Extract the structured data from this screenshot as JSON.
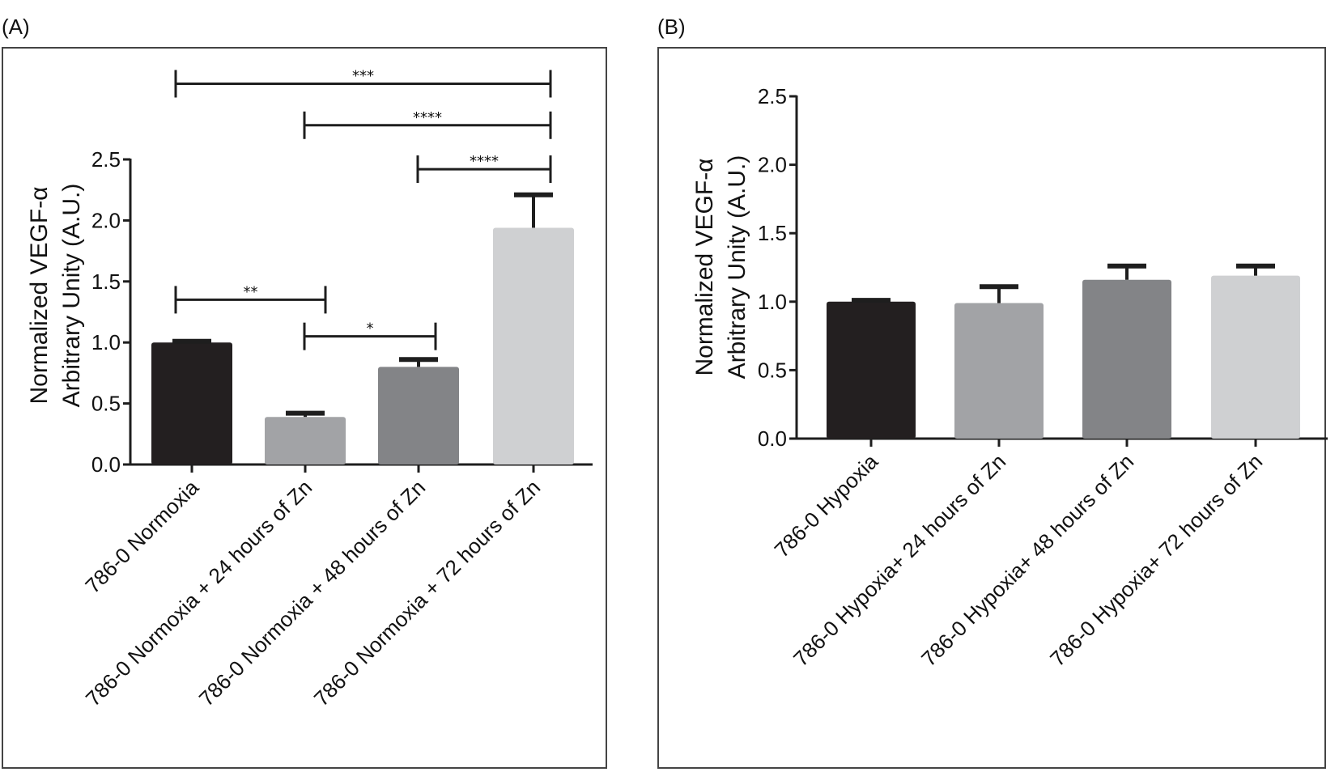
{
  "chart_data": [
    {
      "panel_label": "(A)",
      "type": "bar",
      "title": "",
      "ylabel_lines": [
        "Normalized VEGF-α",
        "Arbitrary Unity (A.U.)"
      ],
      "xlabel": "",
      "ylim": [
        0,
        2.5
      ],
      "yticks": [
        "0.0",
        "0.5",
        "1.0",
        "1.5",
        "2.0",
        "2.5"
      ],
      "categories": [
        "786-0 Normoxia",
        "786-0 Normoxia + 24 hours of Zn",
        "786-0 Normoxia + 48 hours of Zn",
        "786-0 Normoxia + 72 hours of Zn"
      ],
      "values": [
        1.0,
        0.39,
        0.8,
        1.94
      ],
      "errors": [
        0.01,
        0.03,
        0.06,
        0.27
      ],
      "colors": [
        "#231f20",
        "#a2a3a6",
        "#838487",
        "#cfd0d2"
      ],
      "significance": [
        {
          "from": 0,
          "to": 1,
          "label": "**",
          "level": 1.35
        },
        {
          "from": 1,
          "to": 2,
          "label": "*",
          "level": 1.05
        },
        {
          "from": 2,
          "to": 3,
          "label": "****",
          "level": 2.42
        },
        {
          "from": 1,
          "to": 3,
          "label": "****",
          "level": 2.78
        },
        {
          "from": 0,
          "to": 3,
          "label": "***",
          "level": 3.12
        }
      ]
    },
    {
      "panel_label": "(B)",
      "type": "bar",
      "title": "",
      "ylabel_lines": [
        "Normalized VEGF-α",
        "Arbitrary Unity (A.U.)"
      ],
      "xlabel": "",
      "ylim": [
        0,
        2.5
      ],
      "yticks": [
        "0.0",
        "0.5",
        "1.0",
        "1.5",
        "2.0",
        "2.5"
      ],
      "categories": [
        "786-0 Hypoxia",
        "786-0 Hypoxia+ 24 hours of Zn",
        "786-0 Hypoxia+ 48 hours of Zn",
        "786-0 Hypoxia+ 72 hours of Zn"
      ],
      "values": [
        1.0,
        0.99,
        1.16,
        1.19
      ],
      "errors": [
        0.01,
        0.12,
        0.1,
        0.07
      ],
      "colors": [
        "#231f20",
        "#a2a3a6",
        "#838487",
        "#cfd0d2"
      ],
      "significance": []
    }
  ]
}
